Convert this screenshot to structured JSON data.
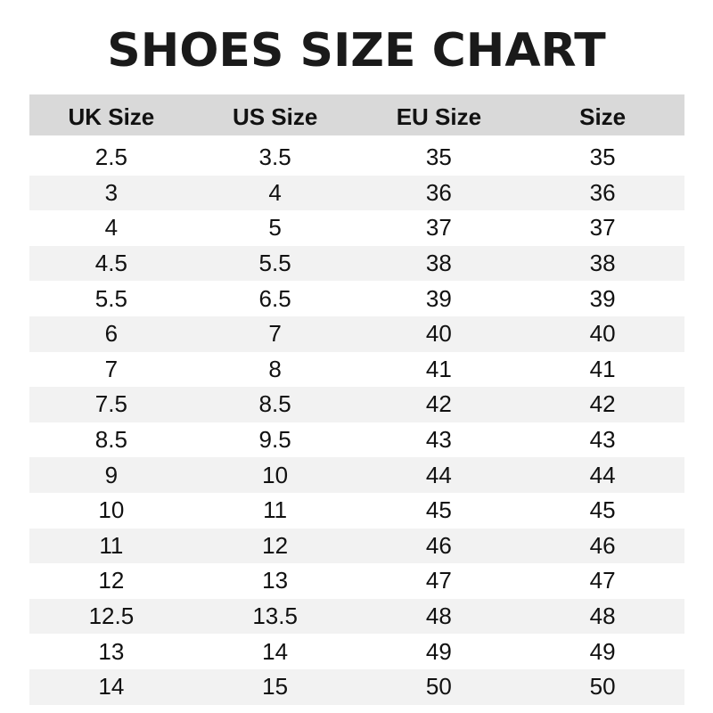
{
  "title": "SHOES SIZE CHART",
  "table": {
    "headers": [
      "UK Size",
      "US Size",
      "EU Size",
      "Size"
    ],
    "rows": [
      [
        "2.5",
        "3.5",
        "35",
        "35"
      ],
      [
        "3",
        "4",
        "36",
        "36"
      ],
      [
        "4",
        "5",
        "37",
        "37"
      ],
      [
        "4.5",
        "5.5",
        "38",
        "38"
      ],
      [
        "5.5",
        "6.5",
        "39",
        "39"
      ],
      [
        "6",
        "7",
        "40",
        "40"
      ],
      [
        "7",
        "8",
        "41",
        "41"
      ],
      [
        "7.5",
        "8.5",
        "42",
        "42"
      ],
      [
        "8.5",
        "9.5",
        "43",
        "43"
      ],
      [
        "9",
        "10",
        "44",
        "44"
      ],
      [
        "10",
        "11",
        "45",
        "45"
      ],
      [
        "11",
        "12",
        "46",
        "46"
      ],
      [
        "12",
        "13",
        "47",
        "47"
      ],
      [
        "12.5",
        "13.5",
        "48",
        "48"
      ],
      [
        "13",
        "14",
        "49",
        "49"
      ],
      [
        "14",
        "15",
        "50",
        "50"
      ]
    ]
  },
  "colors": {
    "header_bg": "#d9d9d9",
    "stripe_bg": "#f2f2f2",
    "text": "#111111"
  }
}
